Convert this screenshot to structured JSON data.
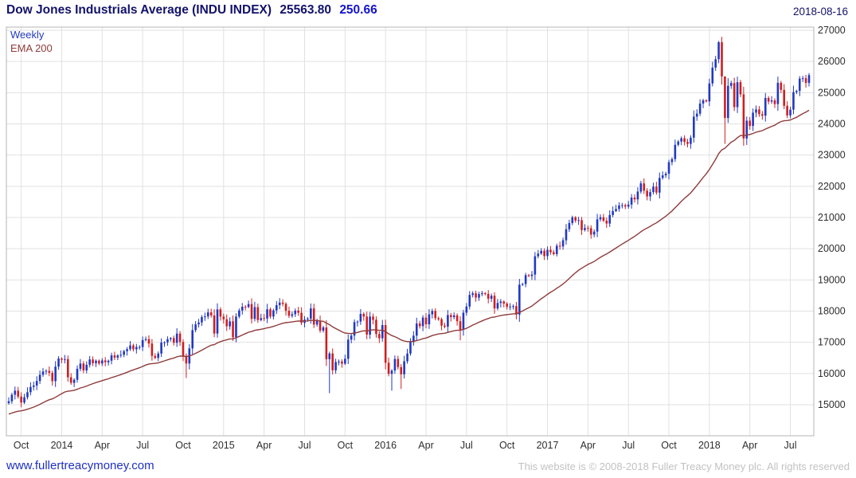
{
  "header": {
    "title": "Dow Jones Industrials Average (INDU INDEX)",
    "last_price": "25563.80",
    "change": "250.66",
    "date": "2018-08-16"
  },
  "legend": {
    "series_label": "Weekly",
    "overlay_label": "EMA 200"
  },
  "footer": {
    "link": "www.fullertreacymoney.com",
    "copyright": "This website is © 2008-2018 Fuller Treacy Money plc. All rights reserved"
  },
  "colors": {
    "up": "#2139c0",
    "down": "#cf1f1f",
    "ema": "#8e3b3b",
    "grid": "#e1e1e1",
    "frame": "#b5b5b5",
    "axis_text": "#2e2e2e"
  },
  "chart_data": {
    "type": "candlestick",
    "interval": "weekly",
    "title": "Dow Jones Industrials Average (INDU INDEX)",
    "last_close": 25563.8,
    "change": 250.66,
    "as_of": "2018-08-16",
    "ylim": [
      14005,
      27102
    ],
    "y_ticks": [
      15000,
      16000,
      17000,
      18000,
      19000,
      20000,
      21000,
      22000,
      23000,
      24000,
      25000,
      26000,
      27000
    ],
    "x_ticks": [
      {
        "label": "Oct",
        "index": 4
      },
      {
        "label": "2014",
        "index": 17
      },
      {
        "label": "Apr",
        "index": 30
      },
      {
        "label": "Jul",
        "index": 43
      },
      {
        "label": "Oct",
        "index": 56
      },
      {
        "label": "2015",
        "index": 69
      },
      {
        "label": "Apr",
        "index": 82
      },
      {
        "label": "Jul",
        "index": 95
      },
      {
        "label": "Oct",
        "index": 108
      },
      {
        "label": "2016",
        "index": 121
      },
      {
        "label": "Apr",
        "index": 134
      },
      {
        "label": "Jul",
        "index": 147
      },
      {
        "label": "Oct",
        "index": 160
      },
      {
        "label": "2017",
        "index": 173
      },
      {
        "label": "Apr",
        "index": 186
      },
      {
        "label": "Jul",
        "index": 199
      },
      {
        "label": "Oct",
        "index": 212
      },
      {
        "label": "2018",
        "index": 225
      },
      {
        "label": "Apr",
        "index": 238
      },
      {
        "label": "Jul",
        "index": 251
      }
    ],
    "grid": true,
    "legend_position": "top-left",
    "first_open": 15050,
    "closes": [
      15110,
      15320,
      15450,
      15260,
      15070,
      15240,
      15400,
      15570,
      15615,
      15760,
      15960,
      16065,
      16085,
      16020,
      15755,
      16220,
      16480,
      16440,
      16460,
      15880,
      15700,
      15800,
      16150,
      16320,
      16100,
      16280,
      16450,
      16330,
      16410,
      16320,
      16420,
      16360,
      16410,
      16580,
      16510,
      16580,
      16600,
      16715,
      16780,
      16900,
      16775,
      16850,
      16850,
      17070,
      17100,
      16960,
      16565,
      16500,
      16640,
      16990,
      17000,
      17100,
      17135,
      16985,
      17280,
      17010,
      16545,
      16320,
      16805,
      17390,
      17575,
      17635,
      17810,
      17830,
      17960,
      17860,
      17280,
      18055,
      17825,
      17737,
      17512,
      17673,
      17164,
      17824,
      18019,
      18140,
      18132,
      18224,
      17750,
      18128,
      17713,
      17776,
      17763,
      18058,
      17826,
      18024,
      18191,
      18272,
      18232,
      18011,
      17849,
      17899,
      18015,
      17947,
      17620,
      17730,
      17760,
      18087,
      17569,
      17690,
      17374,
      17477,
      16460,
      16643,
      16102,
      16370,
      16385,
      16315,
      16472,
      17085,
      17215,
      17647,
      17663,
      17910,
      17825,
      17245,
      17824,
      17720,
      17265,
      17128,
      17552,
      16346,
      15988,
      16094,
      16466,
      16205,
      15974,
      16392,
      16640,
      17007,
      17213,
      17602,
      17516,
      17793,
      17577,
      17897,
      18004,
      17774,
      17740,
      17535,
      17500,
      17873,
      17807,
      17865,
      17675,
      17400,
      17949,
      18147,
      18517,
      18571,
      18432,
      18544,
      18576,
      18553,
      18395,
      18492,
      18085,
      18261,
      18308,
      18240,
      18138,
      18145,
      18161,
      17888,
      18848,
      18868,
      19152,
      19124,
      19170,
      19757,
      19843,
      19934,
      19763,
      19964,
      19886,
      19827,
      20094,
      20072,
      20269,
      20624,
      20822,
      21006,
      20903,
      20915,
      20597,
      20663,
      20656,
      20453,
      20548,
      20941,
      21007,
      20897,
      20805,
      21080,
      21206,
      21272,
      21384,
      21395,
      21350,
      21414,
      21638,
      21580,
      21830,
      22093,
      21858,
      21675,
      21814,
      21988,
      21798,
      22268,
      22350,
      22405,
      22774,
      22872,
      23329,
      23434,
      23539,
      23422,
      23358,
      23558,
      24232,
      24329,
      24652,
      24754,
      24719,
      25296,
      25803,
      26072,
      26617,
      25521,
      24191,
      25219,
      25310,
      24538,
      25336,
      24947,
      23533,
      24103,
      23933,
      24360,
      24463,
      24311,
      24263,
      24831,
      24715,
      24753,
      24635,
      25317,
      25090,
      24581,
      24271,
      24456,
      25019,
      25058,
      25451,
      25463,
      25313,
      25564
    ],
    "wick_overrides": {
      "57": {
        "low": 15855
      },
      "103": {
        "low": 15370
      },
      "123": {
        "low": 15450
      },
      "126": {
        "low": 15503
      },
      "145": {
        "low": 17063
      },
      "228": {
        "high": 26660
      },
      "230": {
        "low": 23360,
        "high": 25520
      }
    },
    "overlay": {
      "label": "EMA 200",
      "type": "ema"
    }
  }
}
